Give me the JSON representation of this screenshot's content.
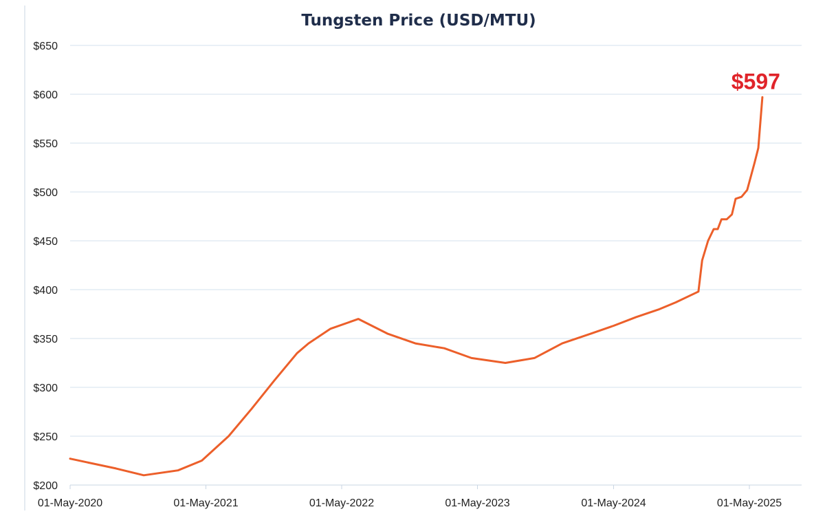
{
  "chart_data": {
    "type": "line",
    "title": "Tungsten Price (USD/MTU)",
    "xlabel": "",
    "ylabel": "",
    "ylim": [
      200,
      650
    ],
    "xlim": [
      "2020-05-01",
      "2025-10-15"
    ],
    "y_ticks": [
      200,
      250,
      300,
      350,
      400,
      450,
      500,
      550,
      600,
      650
    ],
    "y_tick_labels": [
      "$200",
      "$250",
      "$300",
      "$350",
      "$400",
      "$450",
      "$500",
      "$550",
      "$600",
      "$650"
    ],
    "x_ticks": [
      "2020-05-01",
      "2021-05-01",
      "2022-05-01",
      "2023-05-01",
      "2024-05-01",
      "2025-05-01"
    ],
    "x_tick_labels": [
      "01-May-2020",
      "01-May-2021",
      "01-May-2022",
      "01-May-2023",
      "01-May-2024",
      "01-May-2025"
    ],
    "grid": "horizontal",
    "legend": "none",
    "end_label": "$597",
    "series": [
      {
        "color": "#ec5f2a",
        "points": [
          [
            "2020-05-01",
            227
          ],
          [
            "2020-09-01",
            217
          ],
          [
            "2020-11-15",
            210
          ],
          [
            "2021-02-15",
            215
          ],
          [
            "2021-04-20",
            225
          ],
          [
            "2021-07-01",
            250
          ],
          [
            "2021-09-01",
            278
          ],
          [
            "2021-11-01",
            307
          ],
          [
            "2022-01-01",
            335
          ],
          [
            "2022-02-01",
            345
          ],
          [
            "2022-04-01",
            360
          ],
          [
            "2022-06-15",
            370
          ],
          [
            "2022-09-01",
            355
          ],
          [
            "2022-11-15",
            345
          ],
          [
            "2023-02-01",
            340
          ],
          [
            "2023-04-15",
            330
          ],
          [
            "2023-07-15",
            325
          ],
          [
            "2023-10-01",
            330
          ],
          [
            "2023-12-15",
            345
          ],
          [
            "2024-03-01",
            355
          ],
          [
            "2024-05-01",
            363
          ],
          [
            "2024-07-01",
            372
          ],
          [
            "2024-09-01",
            380
          ],
          [
            "2024-10-15",
            387
          ],
          [
            "2024-12-15",
            398
          ],
          [
            "2024-12-25",
            430
          ],
          [
            "2025-01-10",
            450
          ],
          [
            "2025-01-25",
            462
          ],
          [
            "2025-02-05",
            462
          ],
          [
            "2025-02-15",
            472
          ],
          [
            "2025-03-01",
            472
          ],
          [
            "2025-03-15",
            477
          ],
          [
            "2025-03-25",
            493
          ],
          [
            "2025-04-10",
            495
          ],
          [
            "2025-04-25",
            502
          ],
          [
            "2025-05-15",
            530
          ],
          [
            "2025-05-25",
            545
          ],
          [
            "2025-06-05",
            597
          ]
        ]
      }
    ]
  },
  "colors": {
    "title": "#1f2d4a",
    "line": "#ec5f2a",
    "end_label": "#e0242a",
    "grid": "#d3e1ee"
  }
}
